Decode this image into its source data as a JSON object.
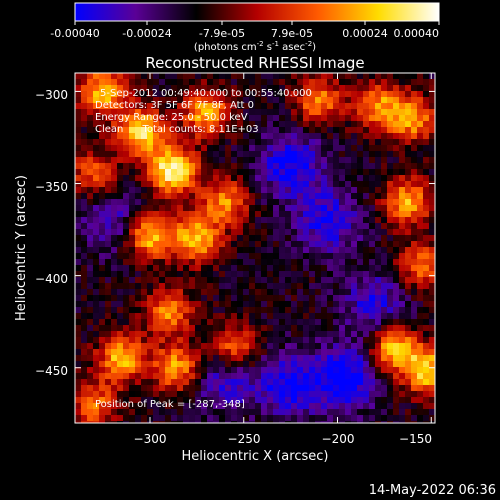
{
  "colorbar": {
    "ticks": [
      "-0.00040",
      "-0.00024",
      "-7.9e-05",
      "7.9e-05",
      "0.00024",
      "0.00040"
    ],
    "label_main": "(photons cm",
    "label_sup1": "-2",
    "label_mid1": " s",
    "label_sup2": "-1",
    "label_mid2": " asec",
    "label_sup3": "-2",
    "label_end": ")",
    "range": [
      -0.0004,
      0.0004
    ],
    "colormap": [
      "#0000ff",
      "#5a0096",
      "#000000",
      "#b40000",
      "#ff5a00",
      "#ffdc00",
      "#ffffff"
    ]
  },
  "chart_data": {
    "type": "heatmap",
    "title": "Reconstructed RHESSI Image",
    "xlabel": "Heliocentric X (arcsec)",
    "ylabel": "Heliocentric Y (arcsec)",
    "xlim": [
      -340,
      -148
    ],
    "ylim": [
      -480,
      -290
    ],
    "xticks": [
      -300,
      -250,
      -200,
      -150
    ],
    "yticks": [
      -300,
      -350,
      -400,
      -450
    ],
    "xtick_labels": [
      "−300",
      "−250",
      "−200",
      "−150"
    ],
    "ytick_labels": [
      "−300",
      "−350",
      "−400",
      "−450"
    ],
    "peak": [
      -287,
      -348
    ],
    "bright_sources": [
      {
        "x": -288,
        "y": -343,
        "intensity": 1.0
      },
      {
        "x": -305,
        "y": -322,
        "intensity": 0.85
      },
      {
        "x": -270,
        "y": -312,
        "intensity": 0.7
      },
      {
        "x": -300,
        "y": -378,
        "intensity": 0.8
      },
      {
        "x": -275,
        "y": -380,
        "intensity": 0.75
      },
      {
        "x": -260,
        "y": -360,
        "intensity": 0.6
      },
      {
        "x": -325,
        "y": -300,
        "intensity": 0.75
      },
      {
        "x": -290,
        "y": -420,
        "intensity": 0.6
      },
      {
        "x": -315,
        "y": -445,
        "intensity": 0.75
      },
      {
        "x": -285,
        "y": -450,
        "intensity": 0.7
      },
      {
        "x": -330,
        "y": -470,
        "intensity": 0.55
      },
      {
        "x": -255,
        "y": -440,
        "intensity": 0.65
      },
      {
        "x": -210,
        "y": -305,
        "intensity": 0.6
      },
      {
        "x": -178,
        "y": -308,
        "intensity": 0.6
      },
      {
        "x": -160,
        "y": -315,
        "intensity": 0.65
      },
      {
        "x": -163,
        "y": -360,
        "intensity": 0.7
      },
      {
        "x": -170,
        "y": -440,
        "intensity": 0.8
      },
      {
        "x": -152,
        "y": -452,
        "intensity": 0.8
      },
      {
        "x": -155,
        "y": -395,
        "intensity": 0.55
      },
      {
        "x": -330,
        "y": -345,
        "intensity": 0.5
      }
    ],
    "dim_sources": [
      {
        "x": -225,
        "y": -340,
        "intensity": -0.5
      },
      {
        "x": -205,
        "y": -370,
        "intensity": -0.45
      },
      {
        "x": -195,
        "y": -455,
        "intensity": -0.55
      },
      {
        "x": -225,
        "y": -460,
        "intensity": -0.5
      },
      {
        "x": -260,
        "y": -455,
        "intensity": -0.45
      },
      {
        "x": -180,
        "y": -415,
        "intensity": -0.4
      },
      {
        "x": -320,
        "y": -370,
        "intensity": -0.35
      }
    ]
  },
  "annotations": {
    "line1": "5-Sep-2012 00:49:40.000 to 00:55:40.000",
    "line2": "Detectors: 3F 5F 6F 7F 8F, Att 0",
    "line3": "Energy Range: 25.0 - 50.0 keV",
    "line4": "Clean      Total counts: 8.11E+03",
    "peak_text": "Position of Peak = [-287,-348]"
  },
  "footer": {
    "timestamp": "14-May-2022 06:36"
  }
}
